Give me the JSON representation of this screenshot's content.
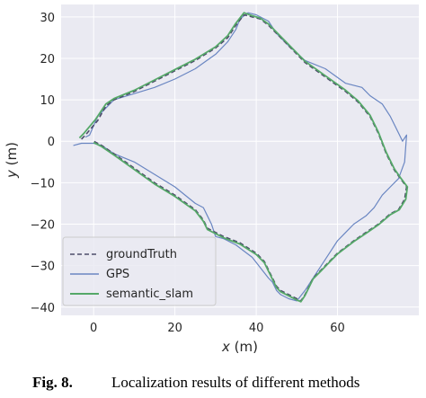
{
  "chart_data": {
    "type": "line",
    "xlabel_var": "x",
    "xlabel_unit": "(m)",
    "ylabel_var": "y",
    "ylabel_unit": "(m)",
    "xlim": [
      -8,
      80
    ],
    "ylim": [
      -42,
      33
    ],
    "xticks": [
      0,
      20,
      40,
      60
    ],
    "yticks": [
      30,
      20,
      10,
      0,
      -10,
      -20,
      -30,
      -40
    ],
    "grid": true,
    "legend_position": "lower-left",
    "series": [
      {
        "name": "groundTruth",
        "color": "#4c4c6a",
        "style": "dashed",
        "x": [
          -3,
          -2,
          1,
          3,
          5,
          10,
          15,
          20,
          25,
          30,
          33,
          35,
          37,
          39,
          41,
          43,
          47,
          52,
          57,
          62,
          65,
          68,
          70,
          72,
          74,
          75.5,
          77,
          76.5,
          75,
          73,
          70,
          67,
          64,
          62,
          60,
          58,
          56,
          54,
          53,
          52,
          51,
          50,
          48,
          46,
          45,
          44,
          42,
          40,
          36,
          32,
          30,
          28,
          27,
          25,
          20,
          15,
          10,
          5,
          2,
          0
        ],
        "y": [
          0.5,
          1.5,
          5,
          8.5,
          10,
          12,
          14.5,
          17,
          19.5,
          22.5,
          25,
          28,
          30.5,
          30,
          29.5,
          28,
          24,
          19,
          15.5,
          12,
          9.5,
          6,
          2,
          -3,
          -7,
          -9,
          -11,
          -14,
          -16.5,
          -17.5,
          -20,
          -22,
          -24,
          -25.5,
          -27,
          -29,
          -31,
          -33,
          -35,
          -37,
          -38.5,
          -38,
          -37,
          -36,
          -35,
          -33,
          -29,
          -27,
          -24.5,
          -23,
          -22,
          -21,
          -19,
          -16.5,
          -13,
          -10,
          -6.5,
          -3,
          -1,
          0
        ]
      },
      {
        "name": "GPS",
        "color": "#6a86c2",
        "style": "solid",
        "x": [
          -2,
          -1,
          1,
          5,
          10,
          15,
          20,
          25,
          30,
          33,
          35,
          36,
          38,
          40,
          43,
          45,
          48,
          52,
          57,
          62,
          66,
          68,
          71,
          73,
          75,
          76,
          77,
          76.5,
          75,
          73,
          71,
          69,
          67,
          64,
          62,
          60,
          58,
          56,
          54,
          52,
          50,
          48,
          46,
          45,
          44,
          43,
          41,
          39,
          37,
          35,
          33,
          32,
          30,
          29,
          28,
          27,
          25,
          20,
          15,
          10,
          5,
          2,
          0,
          -3,
          -5
        ],
        "y": [
          1,
          1.5,
          6,
          10,
          11.5,
          13,
          15,
          17.5,
          21,
          24,
          27,
          29.5,
          31,
          30.5,
          29,
          26,
          23,
          19.5,
          17.5,
          14,
          13,
          11,
          9,
          6,
          2,
          0,
          1.5,
          -5,
          -9,
          -11,
          -13,
          -16,
          -18,
          -20,
          -22,
          -24,
          -27,
          -30,
          -33,
          -36,
          -38.5,
          -38,
          -37,
          -36,
          -34,
          -33,
          -30.5,
          -28,
          -26.5,
          -25,
          -24,
          -23.5,
          -23,
          -20,
          -18,
          -16,
          -15,
          -11,
          -8,
          -5,
          -3,
          -1,
          -0.5,
          -0.5,
          -1
        ]
      },
      {
        "name": "semantic_slam",
        "color": "#55a868",
        "style": "solid",
        "x": [
          -3.5,
          -2.5,
          0.5,
          3,
          5,
          10,
          15,
          20,
          25,
          30,
          33,
          35,
          37,
          39,
          41,
          43,
          47,
          52,
          57,
          62,
          65,
          68,
          70,
          72,
          74,
          75.5,
          77.2,
          76.8,
          75.2,
          73,
          70,
          67,
          64,
          62,
          60,
          58,
          56,
          54,
          53,
          52,
          51,
          50,
          48,
          46,
          45,
          44,
          42,
          40,
          36,
          32,
          30,
          28,
          27,
          25,
          20,
          15,
          10,
          5,
          2,
          0
        ],
        "y": [
          0.8,
          1.8,
          5.3,
          9,
          10.3,
          12.3,
          14.8,
          17.3,
          19.8,
          22.8,
          25.5,
          28.5,
          31,
          30.3,
          29.7,
          28.3,
          24.3,
          19.3,
          15.8,
          12.3,
          9.8,
          6.3,
          2.3,
          -2.7,
          -6.7,
          -8.8,
          -11,
          -14,
          -16.5,
          -17.7,
          -20.2,
          -22.2,
          -24.2,
          -25.7,
          -27.2,
          -29.2,
          -31.2,
          -33.2,
          -35.2,
          -37.2,
          -38.7,
          -38.3,
          -37.3,
          -36.3,
          -35.3,
          -33.3,
          -29.3,
          -27.3,
          -24.8,
          -23.3,
          -22.3,
          -21.3,
          -19.3,
          -16.8,
          -13.3,
          -10.3,
          -6.8,
          -3.3,
          -1.3,
          -0.3
        ]
      }
    ]
  },
  "caption": {
    "label": "Fig. 8.",
    "text": "Localization results of different methods"
  }
}
